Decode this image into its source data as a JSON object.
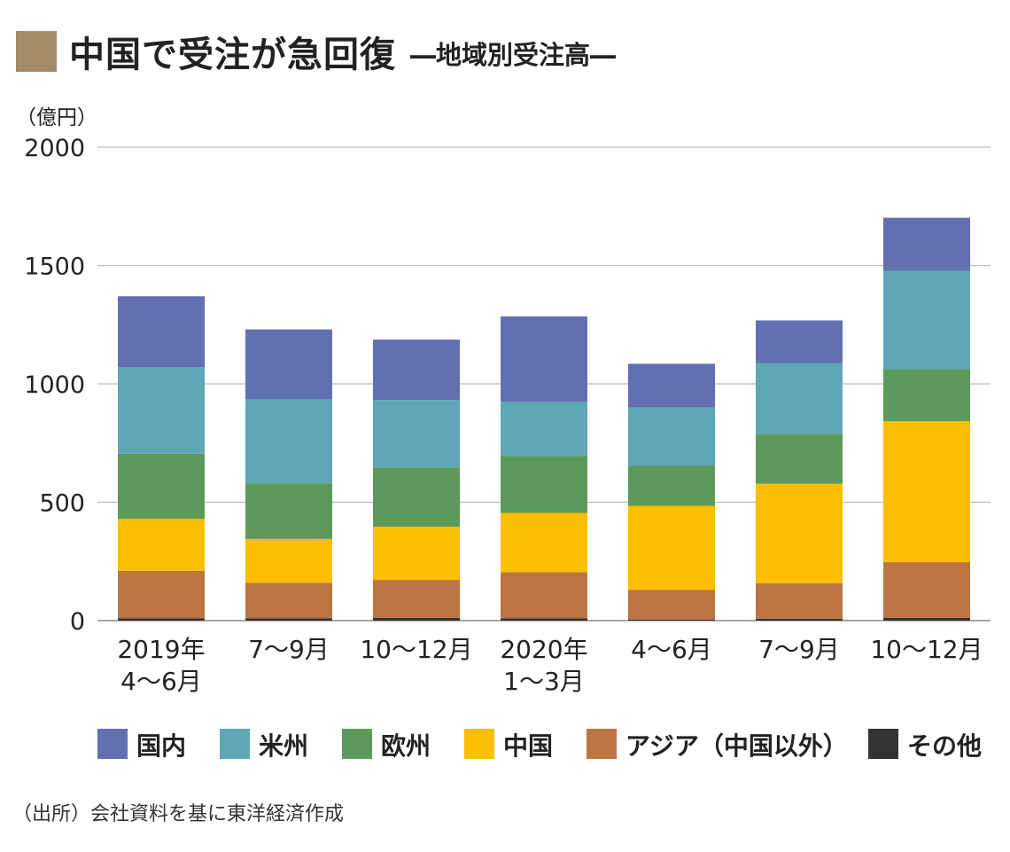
{
  "title": "中国で受注が急回復",
  "subtitle": "―地域別受注高―",
  "source": "（出所）会社資料を基に東洋経済作成",
  "colors": {
    "title_square": "#a28c65",
    "series": [
      "#6270b3",
      "#5fa7b5",
      "#5b9a5a",
      "#fcbe00",
      "#bd7542",
      "#333333"
    ],
    "grid": "#bdbdbd"
  },
  "chart_data": {
    "type": "bar",
    "stacked": true,
    "ylabel": "（億円）",
    "ylim": [
      0,
      2000
    ],
    "yticks": [
      "0",
      "500",
      "1000",
      "1500",
      "2000"
    ],
    "categories": [
      [
        "2019年",
        "4～6月"
      ],
      [
        "7～9月"
      ],
      [
        "10～12月"
      ],
      [
        "2020年",
        "1～3月"
      ],
      [
        "4～6月"
      ],
      [
        "7～9月"
      ],
      [
        "10～12月"
      ]
    ],
    "series": [
      {
        "name": "その他",
        "values": [
          10,
          10,
          12,
          10,
          5,
          8,
          12
        ]
      },
      {
        "name": "アジア（中国以外）",
        "values": [
          200,
          150,
          160,
          195,
          125,
          150,
          235
        ]
      },
      {
        "name": "中国",
        "values": [
          220,
          185,
          225,
          250,
          355,
          420,
          595
        ]
      },
      {
        "name": "欧州",
        "values": [
          275,
          235,
          250,
          240,
          170,
          210,
          220
        ]
      },
      {
        "name": "米州",
        "values": [
          365,
          355,
          285,
          230,
          245,
          300,
          415
        ]
      },
      {
        "name": "国内",
        "values": [
          300,
          295,
          255,
          360,
          185,
          180,
          225
        ]
      }
    ],
    "legend": [
      "国内",
      "米州",
      "欧州",
      "中国",
      "アジア（中国以外）",
      "その他"
    ],
    "legend_position": "bottom"
  }
}
